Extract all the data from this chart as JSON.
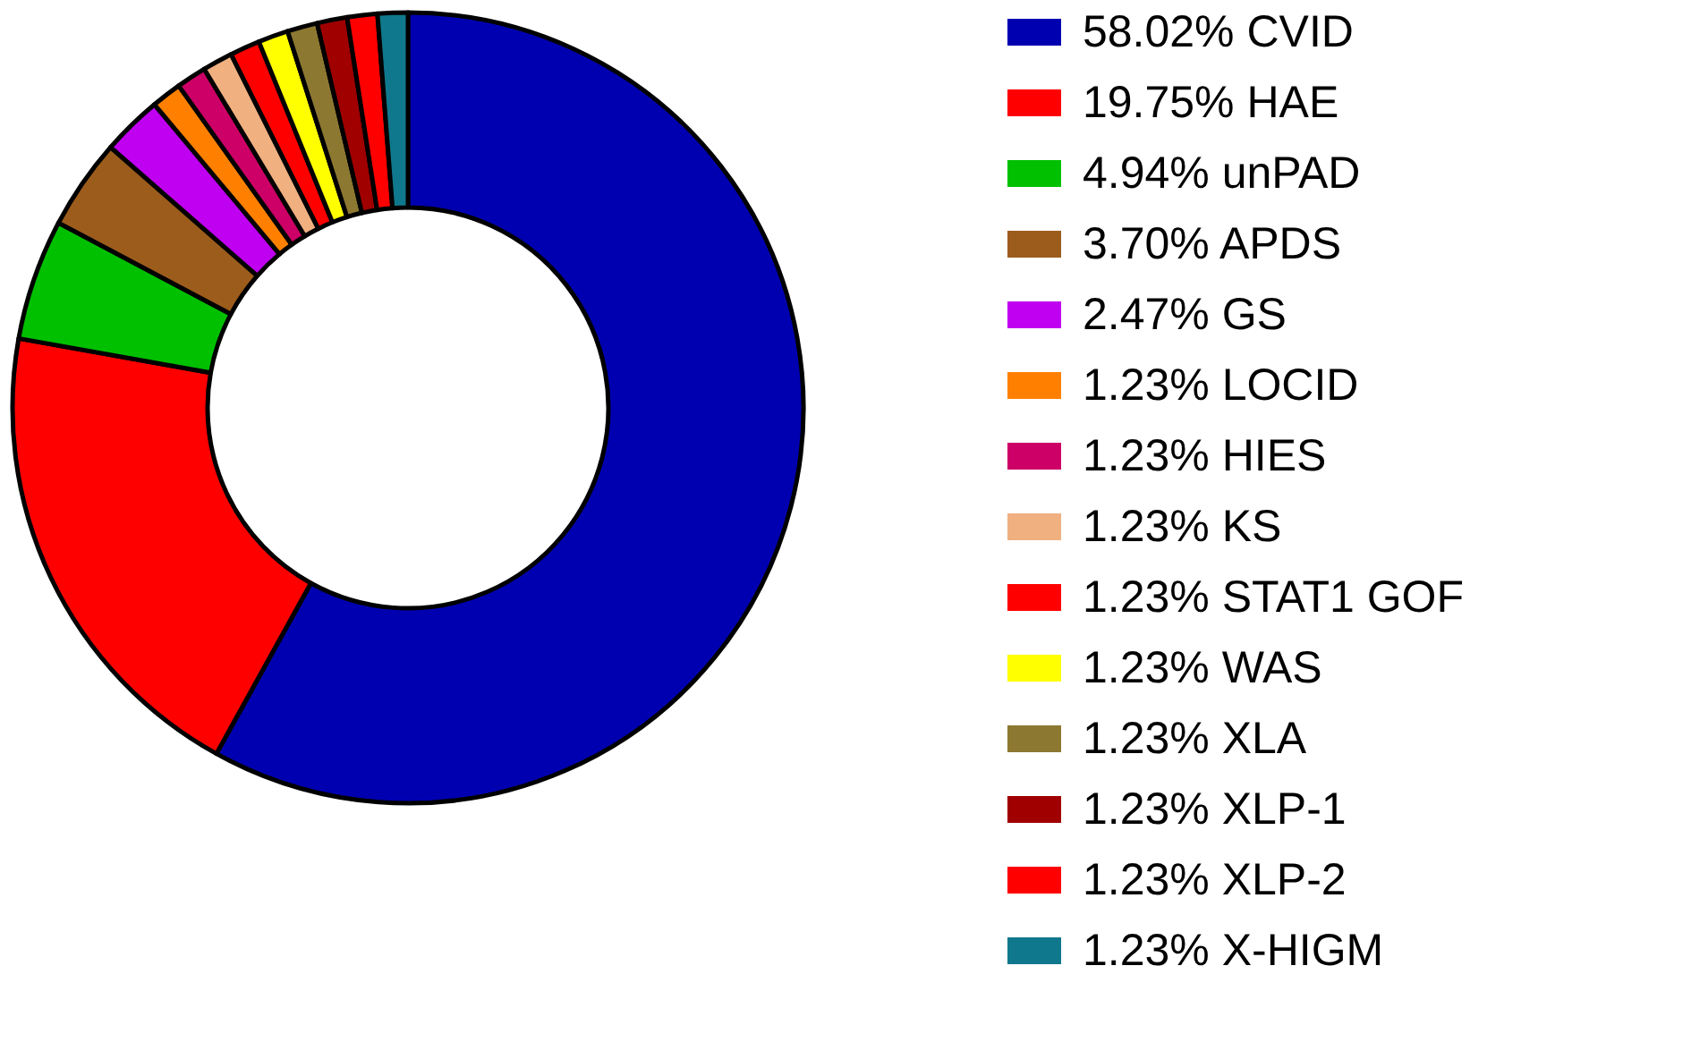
{
  "chart_data": {
    "type": "donut",
    "legend": "right",
    "categories": [
      "CVID",
      "HAE",
      "unPAD",
      "APDS",
      "GS",
      "LOCID",
      "HIES",
      "KS",
      "STAT1 GOF",
      "WAS",
      "XLA",
      "XLP-1",
      "XLP-2",
      "X-HIGM"
    ],
    "values": [
      58.02,
      19.75,
      4.94,
      3.7,
      2.47,
      1.23,
      1.23,
      1.23,
      1.23,
      1.23,
      1.23,
      1.23,
      1.23,
      1.23
    ],
    "value_labels": [
      "58.02%",
      "19.75%",
      "4.94%",
      "3.70%",
      "2.47%",
      "1.23%",
      "1.23%",
      "1.23%",
      "1.23%",
      "1.23%",
      "1.23%",
      "1.23%",
      "1.23%",
      "1.23%"
    ],
    "colors": [
      "#0000b0",
      "#ff0000",
      "#00c000",
      "#9c5c1c",
      "#c000f0",
      "#ff8000",
      "#cc0066",
      "#f0b080",
      "#ff0000",
      "#ffff00",
      "#8c7830",
      "#a00000",
      "#ff0000",
      "#10788c"
    ]
  }
}
